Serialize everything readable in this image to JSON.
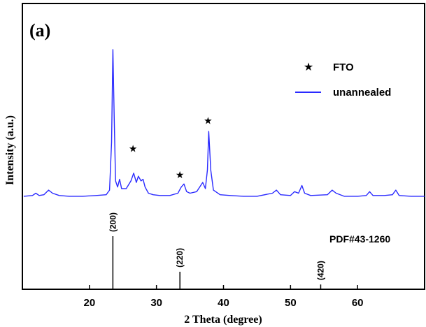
{
  "chart_data": {
    "type": "line",
    "panel_label": "(a)",
    "xlabel": "2 Theta (degree)",
    "ylabel": "Intensity (a.u.)",
    "xlim": [
      10,
      70
    ],
    "ylim": [
      0,
      100
    ],
    "xticks": [
      20,
      30,
      40,
      50,
      60
    ],
    "colors": {
      "pattern": "#2a2aff",
      "axes": "#000000",
      "reference": "#000000"
    },
    "legend": {
      "placement": "top-right",
      "entries": [
        {
          "marker": "star",
          "label": "FTO"
        },
        {
          "marker": "line",
          "label": "unannealed"
        }
      ]
    },
    "series": [
      {
        "name": "unannealed",
        "x": [
          10.2,
          11.5,
          12.0,
          12.5,
          13.2,
          13.9,
          14.5,
          15.5,
          17,
          19,
          21,
          22.5,
          23.0,
          23.3,
          23.5,
          23.7,
          23.9,
          24.2,
          24.5,
          24.8,
          25.5,
          26.2,
          26.6,
          27.0,
          27.3,
          27.7,
          28.0,
          28.3,
          28.8,
          29.5,
          30.5,
          32,
          33.2,
          33.7,
          34.1,
          34.5,
          35,
          36.0,
          36.9,
          37.3,
          37.6,
          37.8,
          38.1,
          38.5,
          39.5,
          41,
          43,
          45,
          47.3,
          47.9,
          48.5,
          50.0,
          50.6,
          51.2,
          51.7,
          52.1,
          53,
          55.5,
          56.2,
          56.8,
          58,
          60,
          61.3,
          61.8,
          62.3,
          64,
          65.2,
          65.7,
          66.2,
          68,
          70
        ],
        "y": [
          5,
          5.5,
          7,
          5.5,
          6,
          9,
          7,
          5.5,
          5,
          5,
          5.5,
          6,
          9,
          40,
          100,
          55,
          15,
          11,
          16,
          10,
          10,
          15,
          20,
          14,
          18,
          15,
          16,
          11,
          7,
          6,
          5.5,
          5.5,
          7,
          11,
          13,
          8,
          7,
          8,
          14,
          10,
          22,
          47,
          22,
          9,
          6,
          5.5,
          5,
          5,
          7,
          9,
          6,
          5.5,
          8,
          7,
          12,
          7,
          5.5,
          6,
          9,
          7,
          5,
          5,
          5.5,
          8,
          5.5,
          5.5,
          6,
          9,
          5.5,
          5,
          5
        ]
      }
    ],
    "fto_markers": [
      {
        "x": 26.5,
        "y": 36
      },
      {
        "x": 33.5,
        "y": 19
      },
      {
        "x": 37.7,
        "y": 54
      }
    ],
    "reference": {
      "label": "PDF#43-1260",
      "lines": [
        {
          "x": 23.5,
          "label": "(200)",
          "rel_intensity": 100
        },
        {
          "x": 33.5,
          "label": "(220)",
          "rel_intensity": 33
        },
        {
          "x": 54.5,
          "label": "(420)",
          "rel_intensity": 9
        }
      ]
    }
  }
}
